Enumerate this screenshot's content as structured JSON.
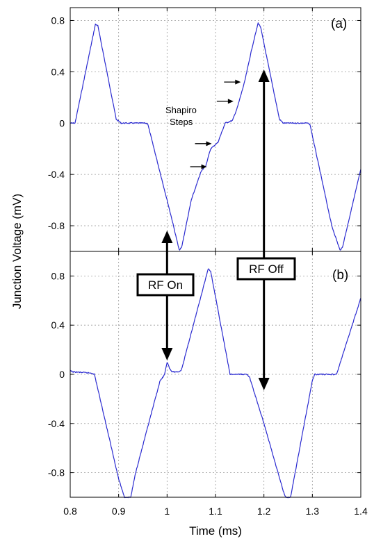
{
  "chart_data": [
    {
      "type": "line",
      "panel_label": "(a)",
      "xlim": [
        0.8,
        1.4
      ],
      "ylim": [
        -1.0,
        0.9
      ],
      "x_ticks": [
        "0.8",
        "0.9",
        "1",
        "1.1",
        "1.2",
        "1.3",
        "1.4"
      ],
      "y_ticks": [
        "0.8",
        "0.4",
        "0",
        "-0.4",
        "-0.8"
      ],
      "grid": true,
      "series": [
        {
          "color": "#2a2ad0",
          "points": [
            [
              0.8,
              0.0
            ],
            [
              0.81,
              0.0
            ],
            [
              0.852,
              0.77
            ],
            [
              0.857,
              0.76
            ],
            [
              0.895,
              0.03
            ],
            [
              0.905,
              0.0
            ],
            [
              0.955,
              0.0
            ],
            [
              0.96,
              -0.005
            ],
            [
              1.0,
              -0.6
            ],
            [
              1.01,
              -0.75
            ],
            [
              1.025,
              -0.99
            ],
            [
              1.03,
              -0.97
            ],
            [
              1.05,
              -0.6
            ],
            [
              1.07,
              -0.38
            ],
            [
              1.08,
              -0.33
            ],
            [
              1.09,
              -0.2
            ],
            [
              1.105,
              -0.15
            ],
            [
              1.12,
              0.0
            ],
            [
              1.135,
              0.02
            ],
            [
              1.145,
              0.12
            ],
            [
              1.16,
              0.32
            ],
            [
              1.175,
              0.58
            ],
            [
              1.188,
              0.78
            ],
            [
              1.193,
              0.75
            ],
            [
              1.232,
              0.03
            ],
            [
              1.24,
              0.0
            ],
            [
              1.29,
              0.0
            ],
            [
              1.295,
              -0.01
            ],
            [
              1.34,
              -0.8
            ],
            [
              1.357,
              -0.99
            ],
            [
              1.362,
              -0.97
            ],
            [
              1.4,
              -0.36
            ]
          ]
        }
      ],
      "annotations": {
        "shapiro_line1": "Shapiro",
        "shapiro_line2": "Steps"
      },
      "step_arrow_targets": [
        [
          1.155,
          0.32
        ],
        [
          1.14,
          0.17
        ],
        [
          1.095,
          -0.16
        ],
        [
          1.085,
          -0.34
        ]
      ]
    },
    {
      "type": "line",
      "panel_label": "(b)",
      "xlim": [
        0.8,
        1.4
      ],
      "ylim": [
        -1.0,
        1.0
      ],
      "x_ticks": [
        "0.8",
        "0.9",
        "1",
        "1.1",
        "1.2",
        "1.3",
        "1.4"
      ],
      "y_ticks": [
        "0.8",
        "0.4",
        "0",
        "-0.4",
        "-0.8"
      ],
      "grid": true,
      "series": [
        {
          "color": "#2a2ad0",
          "points": [
            [
              0.8,
              0.03
            ],
            [
              0.805,
              0.02
            ],
            [
              0.845,
              0.01
            ],
            [
              0.85,
              0.0
            ],
            [
              0.9,
              -0.85
            ],
            [
              0.912,
              -1.0
            ],
            [
              0.925,
              -1.0
            ],
            [
              0.935,
              -0.8
            ],
            [
              0.985,
              -0.06
            ],
            [
              0.995,
              0.0
            ],
            [
              1.0,
              0.1
            ],
            [
              1.005,
              0.05
            ],
            [
              1.01,
              0.02
            ],
            [
              1.025,
              0.02
            ],
            [
              1.03,
              0.04
            ],
            [
              1.085,
              0.86
            ],
            [
              1.09,
              0.84
            ],
            [
              1.13,
              0.0
            ],
            [
              1.165,
              0.0
            ],
            [
              1.17,
              -0.02
            ],
            [
              1.2,
              -0.4
            ],
            [
              1.24,
              -0.95
            ],
            [
              1.245,
              -1.0
            ],
            [
              1.255,
              -1.0
            ],
            [
              1.3,
              -0.05
            ],
            [
              1.305,
              0.0
            ],
            [
              1.35,
              0.0
            ],
            [
              1.4,
              0.62
            ]
          ]
        }
      ],
      "annotations": {}
    }
  ],
  "axes": {
    "xlabel": "Time (ms)",
    "ylabel": "Junction Voltage (mV)"
  },
  "callouts": {
    "rf_on_label": "RF On",
    "rf_off_label": "RF Off",
    "rf_on_x": 1.0,
    "rf_off_x": 1.2
  }
}
